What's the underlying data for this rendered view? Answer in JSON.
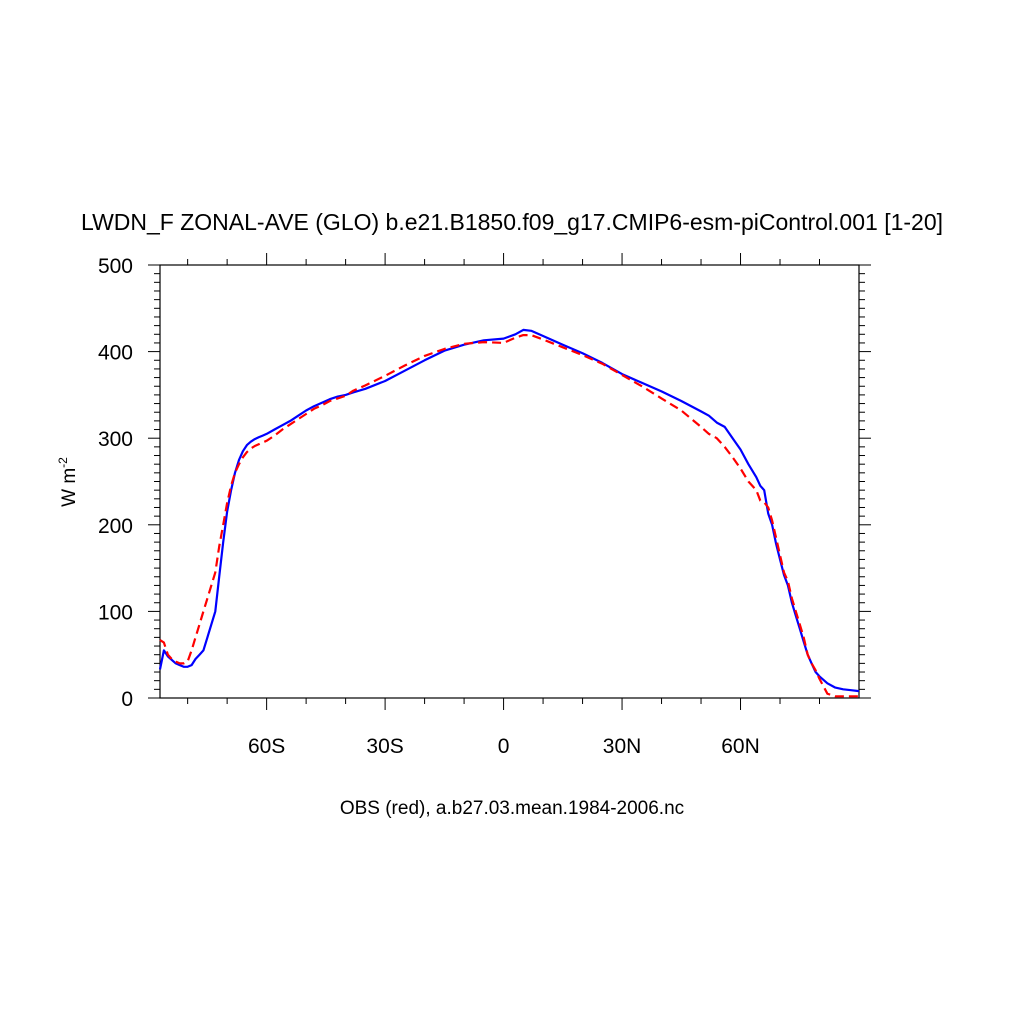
{
  "chart_data": {
    "type": "line",
    "title": "LWDN_F ZONAL-AVE (GLO) b.e21.B1850.f09_g17.CMIP6-esm-piControl.001 [1-20]",
    "xlabel": "OBS (red), a.b27.03.mean.1984-2006.nc",
    "ylabel": "W m",
    "ylabel_superscript": "-2",
    "xlim": [
      -87,
      90
    ],
    "ylim": [
      0,
      500
    ],
    "x_major_ticks": [
      -60,
      -30,
      0,
      30,
      60
    ],
    "x_tick_labels": [
      "60S",
      "30S",
      "0",
      "30N",
      "60N"
    ],
    "y_major_ticks": [
      0,
      100,
      200,
      300,
      400,
      500
    ],
    "y_tick_labels": [
      "0",
      "100",
      "200",
      "300",
      "400",
      "500"
    ],
    "colors": {
      "model": "#0000ff",
      "obs": "#ff0000"
    },
    "series": [
      {
        "color": "#0000ff",
        "style": "solid",
        "x": [
          -87,
          -86,
          -85,
          -84,
          -83,
          -82,
          -81,
          -80,
          -79,
          -78,
          -77,
          -76,
          -75,
          -73,
          -72,
          -71,
          -70,
          -69,
          -68,
          -67,
          -66,
          -65,
          -64,
          -63,
          -62,
          -61,
          -60,
          -58,
          -56,
          -54,
          -52,
          -50,
          -48,
          -46,
          -44,
          -42,
          -40,
          -38,
          -35,
          -30,
          -25,
          -20,
          -15,
          -10,
          -5,
          0,
          3,
          5,
          7,
          10,
          15,
          20,
          25,
          30,
          35,
          40,
          45,
          50,
          52,
          54,
          56,
          58,
          60,
          62,
          64,
          65,
          66,
          67,
          68,
          69,
          70,
          71,
          72,
          73,
          74,
          75,
          76,
          77,
          78,
          79,
          80,
          82,
          84,
          86,
          88,
          90
        ],
        "y": [
          33,
          55,
          48,
          44,
          40,
          38,
          36,
          36,
          38,
          45,
          50,
          55,
          70,
          100,
          140,
          180,
          215,
          240,
          260,
          275,
          285,
          292,
          296,
          299,
          301,
          303,
          305,
          310,
          315,
          320,
          326,
          332,
          337,
          341,
          345,
          348,
          350,
          353,
          357,
          366,
          378,
          390,
          401,
          408,
          413,
          415,
          420,
          425,
          424,
          418,
          408,
          398,
          387,
          374,
          364,
          354,
          343,
          331,
          326,
          318,
          313,
          300,
          287,
          270,
          255,
          245,
          240,
          213,
          200,
          178,
          160,
          142,
          130,
          110,
          95,
          80,
          65,
          50,
          40,
          30,
          25,
          17,
          12,
          10,
          9,
          8
        ]
      },
      {
        "color": "#ff0000",
        "style": "dashed",
        "x": [
          -87,
          -86,
          -85,
          -84,
          -83,
          -82,
          -81,
          -80,
          -79,
          -78,
          -77,
          -76,
          -75,
          -73,
          -72,
          -71,
          -70,
          -69,
          -68,
          -67,
          -66,
          -65,
          -64,
          -63,
          -62,
          -61,
          -60,
          -58,
          -56,
          -54,
          -52,
          -50,
          -48,
          -46,
          -44,
          -42,
          -40,
          -38,
          -35,
          -30,
          -25,
          -20,
          -15,
          -10,
          -5,
          0,
          3,
          5,
          7,
          10,
          15,
          20,
          25,
          30,
          35,
          40,
          45,
          50,
          52,
          54,
          56,
          58,
          60,
          62,
          64,
          65,
          66,
          67,
          68,
          69,
          70,
          71,
          72,
          73,
          74,
          75,
          76,
          77,
          78,
          79,
          80,
          82,
          84,
          86,
          88,
          90
        ],
        "y": [
          67,
          64,
          50,
          45,
          42,
          40,
          40,
          42,
          55,
          70,
          85,
          100,
          115,
          145,
          175,
          200,
          225,
          245,
          260,
          270,
          278,
          284,
          288,
          291,
          293,
          295,
          297,
          303,
          310,
          316,
          322,
          328,
          334,
          338,
          343,
          346,
          349,
          355,
          361,
          372,
          384,
          395,
          403,
          409,
          411,
          410,
          416,
          419,
          419,
          414,
          405,
          396,
          386,
          373,
          360,
          346,
          332,
          313,
          305,
          300,
          290,
          278,
          265,
          250,
          240,
          228,
          226,
          220,
          205,
          185,
          165,
          145,
          135,
          115,
          100,
          85,
          70,
          50,
          40,
          32,
          22,
          5,
          2,
          2,
          2,
          2
        ]
      }
    ]
  }
}
